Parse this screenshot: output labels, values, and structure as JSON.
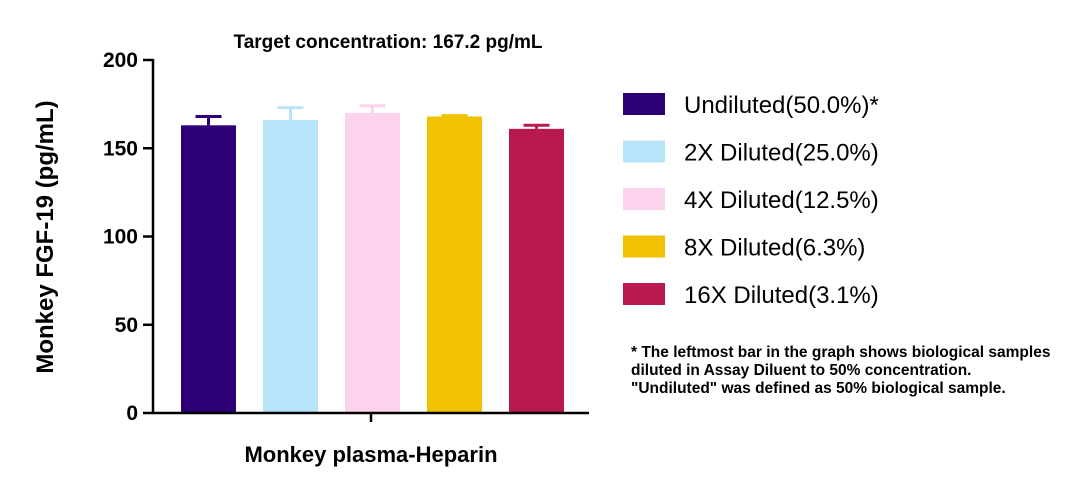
{
  "chart_data": {
    "type": "bar",
    "title": "Target concentration: 167.2 pg/mL",
    "ylabel": "Monkey FGF-19 (pg/mL)",
    "xlabel": "Monkey plasma-Heparin",
    "ylim": [
      0,
      200
    ],
    "yticks": [
      "0",
      "50",
      "100",
      "150",
      "200"
    ],
    "series": [
      {
        "name": "Undiluted(50.0%)*",
        "value": 163,
        "error": 5,
        "color": "#2e0078"
      },
      {
        "name": "2X Diluted(25.0%)",
        "value": 166,
        "error": 7,
        "color": "#b8e4fa"
      },
      {
        "name": "4X Diluted(12.5%)",
        "value": 170,
        "error": 4,
        "color": "#fcd2ec"
      },
      {
        "name": "8X Diluted(6.3%)",
        "value": 168,
        "error": 0.5,
        "color": "#f2c200"
      },
      {
        "name": "16X Diluted(3.1%)",
        "value": 161,
        "error": 2,
        "color": "#b81a4e"
      }
    ],
    "legend_position": "right",
    "grid": false
  },
  "footnote": "* The leftmost bar in the graph shows biological samples diluted in Assay Diluent to 50% concentration. \"Undiluted\" was defined as 50% biological sample."
}
